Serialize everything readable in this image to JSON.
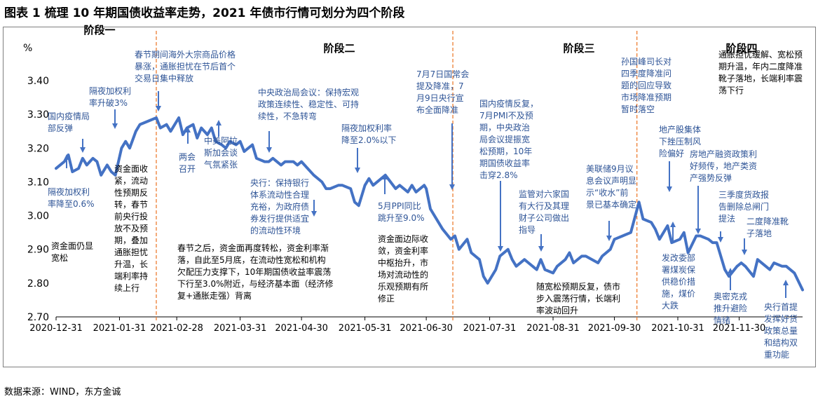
{
  "figure_title": "图表 1    梳理 10 年期国债收益率走势，2021 年债市行情可划分为四个阶段",
  "source": "数据来源：WIND，东方金诚",
  "colors": {
    "line": "#4472c4",
    "divider": "#ed7d31",
    "blue_text": "#2f5597",
    "black_text": "#000000"
  },
  "chart_data": {
    "type": "line",
    "title": "",
    "ylabel": "%",
    "ylim": [
      2.7,
      3.45
    ],
    "yticks": [
      "2.70",
      "2.80",
      "2.90",
      "3.00",
      "3.10",
      "3.20",
      "3.30",
      "3.40"
    ],
    "yticks_values": [
      2.7,
      2.8,
      2.9,
      3.0,
      3.1,
      3.2,
      3.3,
      3.4
    ],
    "xticks": [
      "2020-12-31",
      "2021-01-31",
      "2021-02-28",
      "2021-03-31",
      "2021-04-30",
      "2021-05-31",
      "2021-06-30",
      "2021-07-31",
      "2021-08-31",
      "2021-09-30",
      "2021-10-31",
      "2021-11-30"
    ],
    "xticks_values": [
      "2020-12-31",
      "2021-01-31",
      "2021-02-28",
      "2021-03-31",
      "2021-04-30",
      "2021-05-31",
      "2021-06-30",
      "2021-07-31",
      "2021-08-31",
      "2021-09-30",
      "2021-10-31",
      "2021-11-30"
    ],
    "x_end": "2021-12-31",
    "grid": false,
    "stages": [
      {
        "label": "阶段一",
        "start": "2020-12-31",
        "end": "2021-02-18"
      },
      {
        "label": "阶段二",
        "start": "2021-02-18",
        "end": "2021-07-13"
      },
      {
        "label": "阶段三",
        "start": "2021-07-13",
        "end": "2021-10-11"
      },
      {
        "label": "阶段四",
        "start": "2021-10-11",
        "end": "2021-12-31"
      }
    ],
    "series": [
      {
        "x": [
          "2020-12-31",
          "2021-01-04",
          "2021-01-06",
          "2021-01-08",
          "2021-01-11",
          "2021-01-13",
          "2021-01-15",
          "2021-01-18",
          "2021-01-20",
          "2021-01-22",
          "2021-01-25",
          "2021-01-27",
          "2021-01-29",
          "2021-02-01",
          "2021-02-03",
          "2021-02-05",
          "2021-02-08",
          "2021-02-10",
          "2021-02-18",
          "2021-02-20",
          "2021-02-23",
          "2021-02-25",
          "2021-03-01",
          "2021-03-03",
          "2021-03-05",
          "2021-03-08",
          "2021-03-10",
          "2021-03-12",
          "2021-03-15",
          "2021-03-17",
          "2021-03-19",
          "2021-03-22",
          "2021-03-24",
          "2021-03-26",
          "2021-03-29",
          "2021-03-31",
          "2021-04-02",
          "2021-04-06",
          "2021-04-08",
          "2021-04-12",
          "2021-04-14",
          "2021-04-16",
          "2021-04-20",
          "2021-04-22",
          "2021-04-26",
          "2021-04-28",
          "2021-04-30",
          "2021-05-06",
          "2021-05-10",
          "2021-05-12",
          "2021-05-14",
          "2021-05-18",
          "2021-05-20",
          "2021-05-24",
          "2021-05-26",
          "2021-05-28",
          "2021-05-31",
          "2021-06-02",
          "2021-06-04",
          "2021-06-08",
          "2021-06-10",
          "2021-06-15",
          "2021-06-17",
          "2021-06-21",
          "2021-06-23",
          "2021-06-25",
          "2021-06-29",
          "2021-06-30",
          "2021-07-02",
          "2021-07-06",
          "2021-07-08",
          "2021-07-12",
          "2021-07-14",
          "2021-07-16",
          "2021-07-20",
          "2021-07-22",
          "2021-07-26",
          "2021-07-28",
          "2021-07-30",
          "2021-08-03",
          "2021-08-05",
          "2021-08-09",
          "2021-08-11",
          "2021-08-13",
          "2021-08-17",
          "2021-08-19",
          "2021-08-23",
          "2021-08-25",
          "2021-08-27",
          "2021-08-31",
          "2021-09-02",
          "2021-09-06",
          "2021-09-08",
          "2021-09-10",
          "2021-09-14",
          "2021-09-16",
          "2021-09-22",
          "2021-09-24",
          "2021-09-28",
          "2021-09-30",
          "2021-10-08",
          "2021-10-12",
          "2021-10-14",
          "2021-10-18",
          "2021-10-20",
          "2021-10-22",
          "2021-10-26",
          "2021-10-28",
          "2021-11-01",
          "2021-11-03",
          "2021-11-05",
          "2021-11-09",
          "2021-11-11",
          "2021-11-15",
          "2021-11-17",
          "2021-11-19",
          "2021-11-23",
          "2021-11-25",
          "2021-11-29",
          "2021-12-01",
          "2021-12-03",
          "2021-12-07",
          "2021-12-09",
          "2021-12-13",
          "2021-12-15",
          "2021-12-17",
          "2021-12-21",
          "2021-12-23",
          "2021-12-27",
          "2021-12-31"
        ],
        "values": [
          3.14,
          3.16,
          3.18,
          3.13,
          3.14,
          3.17,
          3.15,
          3.17,
          3.16,
          3.12,
          3.15,
          3.13,
          3.12,
          3.2,
          3.22,
          3.2,
          3.25,
          3.27,
          3.29,
          3.26,
          3.27,
          3.25,
          3.29,
          3.24,
          3.26,
          3.27,
          3.23,
          3.26,
          3.24,
          3.26,
          3.22,
          3.21,
          3.2,
          3.22,
          3.21,
          3.22,
          3.19,
          3.21,
          3.17,
          3.16,
          3.16,
          3.17,
          3.15,
          3.16,
          3.16,
          3.15,
          3.16,
          3.12,
          3.1,
          3.08,
          3.08,
          3.09,
          3.09,
          3.08,
          3.04,
          3.03,
          3.09,
          3.11,
          3.09,
          3.11,
          3.12,
          3.08,
          3.09,
          3.07,
          3.09,
          3.07,
          3.09,
          3.08,
          3.02,
          2.98,
          2.96,
          2.93,
          2.94,
          2.9,
          2.93,
          2.89,
          2.87,
          2.82,
          2.8,
          2.84,
          2.88,
          2.9,
          2.87,
          2.85,
          2.87,
          2.86,
          2.84,
          2.87,
          2.84,
          2.83,
          2.85,
          2.87,
          2.89,
          2.86,
          2.88,
          2.88,
          2.86,
          2.88,
          2.9,
          2.93,
          2.95,
          3.04,
          2.99,
          2.98,
          2.96,
          2.93,
          2.97,
          2.92,
          2.93,
          2.95,
          2.89,
          2.94,
          2.94,
          2.93,
          2.92,
          2.92,
          2.84,
          2.82,
          2.85,
          2.86,
          2.85,
          2.82,
          2.87,
          2.85,
          2.84,
          2.86,
          2.85,
          2.85,
          2.83,
          2.78
        ]
      }
    ],
    "annotations": [
      {
        "text": "国内疫情局部反弹",
        "color": "blue"
      },
      {
        "text": "隔夜加权利率升破3%",
        "color": "blue"
      },
      {
        "text": "春节期间海外大宗商品价格暴涨，通胀担忧在节后首个交易日集中释放",
        "color": "blue"
      },
      {
        "text": "两会召开",
        "color": "blue"
      },
      {
        "text": "中美阿拉斯加会谈气氛紧张",
        "color": "blue"
      },
      {
        "text": "中央政治局会议：保持宏观政策连续性、稳定性、可持续性，不急转弯",
        "color": "blue"
      },
      {
        "text": "隔夜加权利率降至2.0%以下",
        "color": "blue"
      },
      {
        "text": "央行：保持银行体系流动性合理充裕，为政府债券发行提供适宜的流动性环境",
        "color": "blue"
      },
      {
        "text": "7月7日国常会提及降准，7月9日央行宣布全面降准",
        "color": "blue"
      },
      {
        "text": "国内疫情反复，7月PMI不及预期，中央政治局会议提振宽松预期，10年期国债收益率击穿2.8%",
        "color": "blue"
      },
      {
        "text": "5月PPI同比跳升至9.0%",
        "color": "blue"
      },
      {
        "text": "隔夜加权利率降至0.6%",
        "color": "blue"
      },
      {
        "text": "资金面收紧，流动性预期反转，春节前央行投放不及预期，叠加通胀担忧升温，长端利率持续上行",
        "color": "black"
      },
      {
        "text": "资金面仍显宽松",
        "color": "black"
      },
      {
        "text": "春节之后，资金面再度转松，资金利率渐落，自此至5月底，在流动性宽松和机构欠配压力支撑下，10年期国债收益率震荡下行至3.0%附近，与经济基本面（经济修复+通胀走强）背离",
        "color": "black"
      },
      {
        "text": "资金面边际收敛，资金利率中枢抬升，市场对流动性的乐观预期有所修正",
        "color": "black"
      },
      {
        "text": "监管对六家国有大行及其理财子公司做出指导",
        "color": "blue"
      },
      {
        "text": "随宽松预期反复，债市步入震荡行情，长端利率波动回升",
        "color": "black"
      },
      {
        "text": "美联储9月议息会议声明显示“收水”前景已基本确定",
        "color": "blue"
      },
      {
        "text": "孙国峰司长对四季度降准问题的回应导致市场降准预期暂时落空",
        "color": "blue"
      },
      {
        "text": "地产股集体下挫压制风险偏好",
        "color": "blue"
      },
      {
        "text": "通胀担忧缓解、宽松预期升温，年内二度降准靴子落地，长端利率震荡下行",
        "color": "black"
      },
      {
        "text": "房地产融资政策利好频传，地产类资产强势反弹",
        "color": "blue"
      },
      {
        "text": "三季度货政报告删除总闸门提法",
        "color": "blue"
      },
      {
        "text": "二度降准靴子落地",
        "color": "blue"
      },
      {
        "text": "发改委部署煤炭保供稳价措施，煤价大跌",
        "color": "blue"
      },
      {
        "text": "奥密克戎推升避险情绪",
        "color": "blue"
      },
      {
        "text": "央行首提发挥好货政策总量和结构双重功能",
        "color": "blue"
      }
    ]
  }
}
